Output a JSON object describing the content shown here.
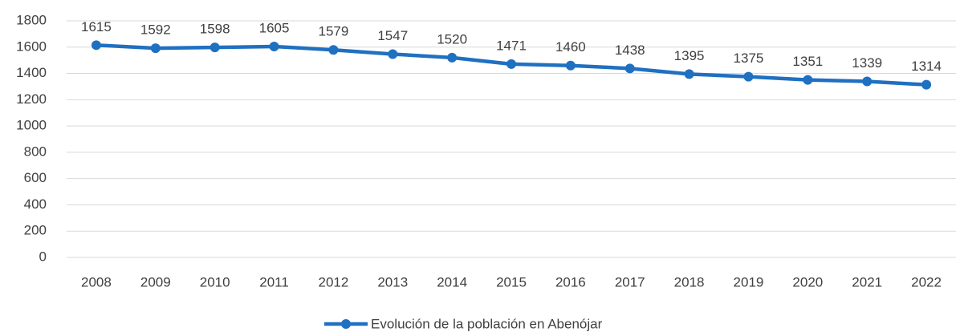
{
  "chart_data": {
    "type": "line",
    "categories": [
      "2008",
      "2009",
      "2010",
      "2011",
      "2012",
      "2013",
      "2014",
      "2015",
      "2016",
      "2017",
      "2018",
      "2019",
      "2020",
      "2021",
      "2022"
    ],
    "series": [
      {
        "name": "Evolución de la población en Abenójar",
        "color": "#1f70c1",
        "values": [
          1615,
          1592,
          1598,
          1605,
          1579,
          1547,
          1520,
          1471,
          1460,
          1438,
          1395,
          1375,
          1351,
          1339,
          1314
        ]
      }
    ],
    "ylim": [
      0,
      1800
    ],
    "yticks": [
      0,
      200,
      400,
      600,
      800,
      1000,
      1200,
      1400,
      1600,
      1800
    ],
    "grid": true,
    "legend": "bottom"
  }
}
